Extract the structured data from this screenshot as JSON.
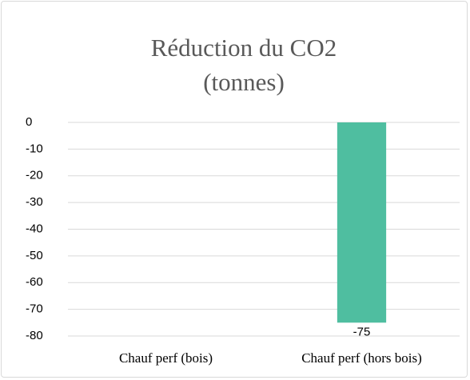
{
  "chart_data": {
    "type": "bar",
    "title": "Réduction du CO2 (tonnes)",
    "categories": [
      "Chauf perf (bois)",
      "Chauf perf (hors bois)"
    ],
    "values": [
      null,
      -75
    ],
    "color": "#4fbea0",
    "ylim": [
      -80,
      0
    ],
    "yticks": [
      0,
      -10,
      -20,
      -30,
      -40,
      -50,
      -60,
      -70,
      -80
    ],
    "grid": true
  }
}
